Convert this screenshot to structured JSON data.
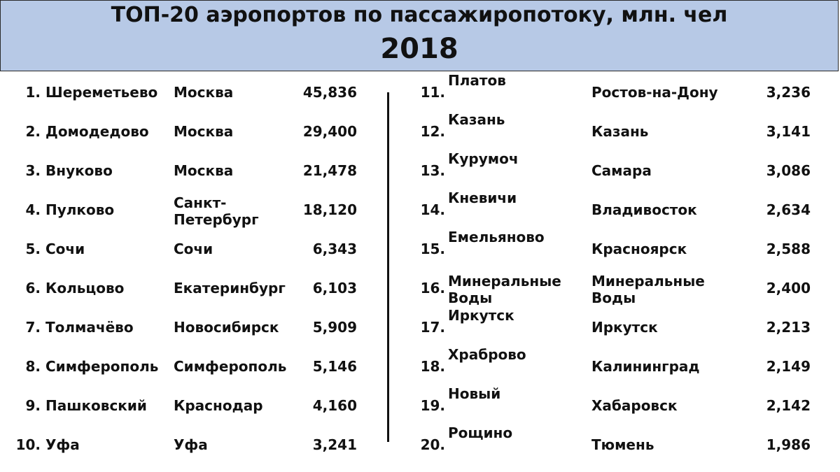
{
  "header": {
    "title": "ТОП-20 аэропортов по пассажиропотоку, млн. чел",
    "year": "2018",
    "background_color": "#b7c9e6"
  },
  "rows": [
    {
      "rank": "1.",
      "airport": "Шереметьево",
      "city": "Москва",
      "value": "45,836"
    },
    {
      "rank": "2.",
      "airport": "Домодедово",
      "city": "Москва",
      "value": "29,400"
    },
    {
      "rank": "3.",
      "airport": "Внуково",
      "city": "Москва",
      "value": "21,478"
    },
    {
      "rank": "4.",
      "airport": "Пулково",
      "city": "Санкт-\nПетербург",
      "value": "18,120"
    },
    {
      "rank": "5.",
      "airport": "Сочи",
      "city": "Сочи",
      "value": "6,343"
    },
    {
      "rank": "6.",
      "airport": "Кольцово",
      "city": "Екатеринбург",
      "value": "6,103"
    },
    {
      "rank": "7.",
      "airport": "Толмачёво",
      "city": "Новосибирск",
      "value": "5,909"
    },
    {
      "rank": "8.",
      "airport": "Симферополь",
      "city": "Симферополь",
      "value": "5,146"
    },
    {
      "rank": "9.",
      "airport": "Пашковский",
      "city": "Краснодар",
      "value": "4,160"
    },
    {
      "rank": "10.",
      "airport": "Уфа",
      "city": "Уфа",
      "value": "3,241"
    },
    {
      "rank": "11.",
      "airport": "Платов",
      "city": "Ростов-на-Дону",
      "value": "3,236"
    },
    {
      "rank": "12.",
      "airport": "Казань",
      "city": "Казань",
      "value": "3,141"
    },
    {
      "rank": "13.",
      "airport": "Курумоч",
      "city": "Самара",
      "value": "3,086"
    },
    {
      "rank": "14.",
      "airport": "Кневичи",
      "city": "Владивосток",
      "value": "2,634"
    },
    {
      "rank": "15.",
      "airport": "Емельяново",
      "city": "Красноярск",
      "value": "2,588"
    },
    {
      "rank": "16.",
      "airport": "Минеральные\nВоды",
      "city": "Минеральные\nВоды",
      "value": "2,400"
    },
    {
      "rank": "17.",
      "airport": "Иркутск",
      "city": "Иркутск",
      "value": "2,213"
    },
    {
      "rank": "18.",
      "airport": "Храброво",
      "city": "Калининград",
      "value": "2,149"
    },
    {
      "rank": "19.",
      "airport": "Новый",
      "city": "Хабаровск",
      "value": "2,142"
    },
    {
      "rank": "20.",
      "airport": "Рощино",
      "city": "Тюмень",
      "value": "1,986"
    }
  ]
}
